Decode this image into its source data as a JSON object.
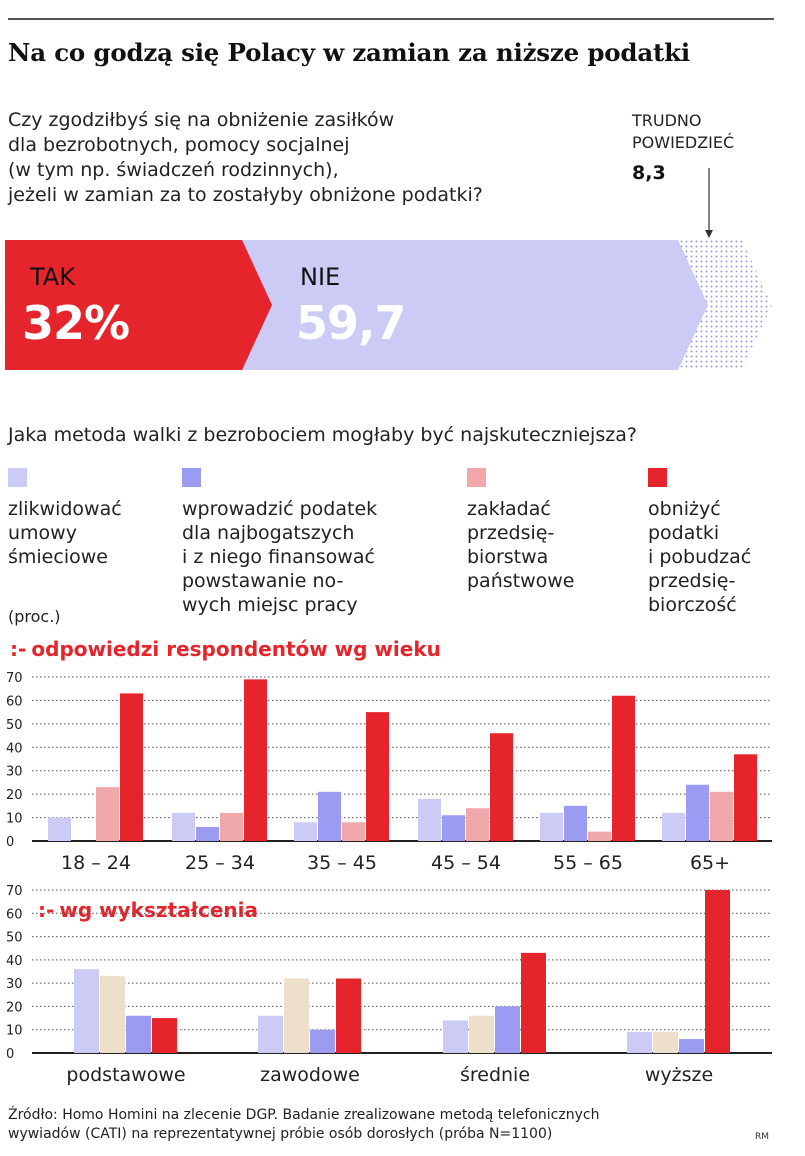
{
  "headline": "Na co godzą się Polacy w zamian za niższe podatki",
  "question1": {
    "lines": [
      "Czy zgodziłbyś się na obniżenie zasiłków",
      "dla bezrobotnych, pomocy socjalnej",
      "(w tym np. świadczeń rodzinnych),",
      "jeżeli w zamian za to zostałyby obniżone podatki?"
    ]
  },
  "answers": {
    "tak_label": "TAK",
    "tak_value": "32%",
    "nie_label": "NIE",
    "nie_value": "59,7",
    "td_label_1": "TRUDNO",
    "td_label_2": "POWIEDZIEĆ",
    "td_value": "8,3"
  },
  "question2": "Jaka metoda walki z bezrobociem mogłaby być najskuteczniejsza?",
  "legend": [
    {
      "color": "#cbcbf5",
      "lines": [
        "zlikwidować",
        "umowy",
        "śmieciowe"
      ]
    },
    {
      "color": "#9b9bf2",
      "lines": [
        "wprowadzić podatek",
        "dla najbogatszych",
        "i z niego finansować",
        "powstawanie no-",
        "wych miejsc pracy"
      ]
    },
    {
      "color": "#f0a8ab",
      "lines": [
        "zakładać",
        "przedsię-",
        "biorstwa",
        "państwowe"
      ]
    },
    {
      "color": "#e5242b",
      "lines": [
        "obniżyć",
        "podatki",
        "i pobudzać",
        "przedsię-",
        "biorczość"
      ]
    }
  ],
  "unit": "(proc.)",
  "colors": {
    "red": "#e5242b",
    "lavender": "#cbcbf5",
    "purple": "#9b9bf2",
    "pink": "#f0a8ab",
    "beige": "#eedfcb"
  },
  "chart_data": [
    {
      "type": "bar",
      "title": "odpowiedzi respondentów wg wieku",
      "categories": [
        "18 – 24",
        "25 – 34",
        "35 – 45",
        "45 – 54",
        "55 – 65",
        "65+"
      ],
      "ylim": [
        0,
        70
      ],
      "yticks": [
        0,
        10,
        20,
        30,
        40,
        50,
        60,
        70
      ],
      "grid": true,
      "series": [
        {
          "color": "#cbcbf5",
          "values": [
            10,
            12,
            8,
            18,
            12,
            12
          ]
        },
        {
          "color": "#9b9bf2",
          "values": [
            0,
            6,
            21,
            11,
            15,
            24
          ]
        },
        {
          "color": "#f0a8ab",
          "values": [
            23,
            12,
            8,
            14,
            4,
            21
          ]
        },
        {
          "color": "#e5242b",
          "values": [
            63,
            69,
            55,
            46,
            62,
            37
          ]
        }
      ]
    },
    {
      "type": "bar",
      "title": "wg wykształcenia",
      "categories": [
        "podstawowe",
        "zawodowe",
        "średnie",
        "wyższe"
      ],
      "ylim": [
        0,
        70
      ],
      "yticks": [
        0,
        10,
        20,
        30,
        40,
        50,
        60,
        70
      ],
      "grid": true,
      "series": [
        {
          "color": "#cbcbf5",
          "values": [
            36,
            16,
            14,
            9
          ]
        },
        {
          "color": "#eedfcb",
          "values": [
            33,
            32,
            16,
            9
          ]
        },
        {
          "color": "#9b9bf2",
          "values": [
            16,
            10,
            20,
            6
          ]
        },
        {
          "color": "#e5242b",
          "values": [
            15,
            32,
            43,
            70
          ]
        }
      ]
    }
  ],
  "footer": {
    "line1": "Źródło: Homo Homini na zlecenie DGP. Badanie zrealizowane metodą telefonicznych",
    "line2": "wywiadów (CATI) na reprezentatywnej próbie osób dorosłych (próba N=1100)",
    "credit": "RM"
  }
}
